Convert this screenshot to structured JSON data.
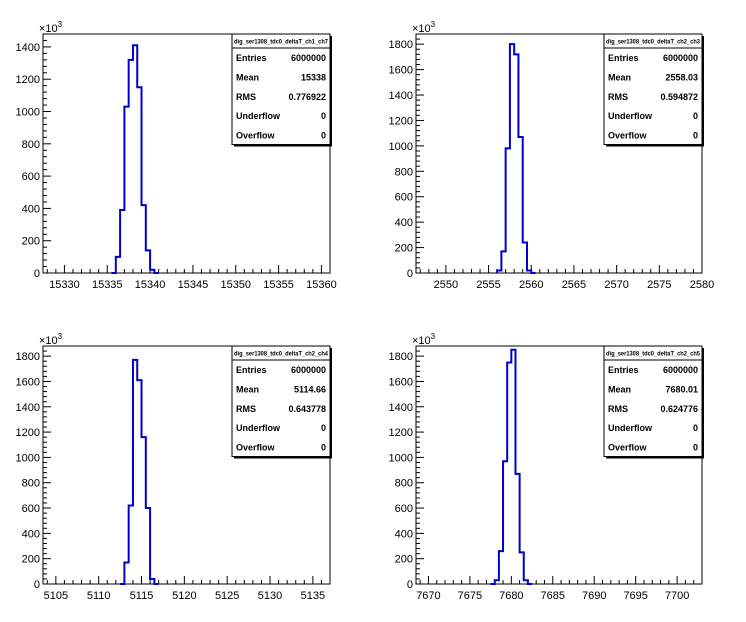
{
  "chart_data": [
    {
      "type": "histogram",
      "title": "",
      "xlabel": "",
      "ylabel": "",
      "xlim": [
        15327.5,
        15361
      ],
      "ylim": [
        0,
        1480
      ],
      "xticks": [
        15330,
        15335,
        15340,
        15345,
        15350,
        15355,
        15360
      ],
      "yticks": [
        0,
        200,
        400,
        600,
        800,
        1000,
        1200,
        1400
      ],
      "ytick_labels": [
        "0",
        "200",
        "400",
        "600",
        "800",
        "1000",
        "1200",
        "1400"
      ],
      "yexponent": "×10",
      "yexponent_power": "3",
      "bin_edges": [
        15335.5,
        15336,
        15336.5,
        15337,
        15337.5,
        15338,
        15338.5,
        15339,
        15339.5,
        15340,
        15340.5,
        15341
      ],
      "values": [
        0,
        100,
        390,
        1030,
        1320,
        1410,
        1150,
        420,
        140,
        20,
        0
      ],
      "color": "#0000cc",
      "stats": {
        "name": "dig_ser1308_tdc0_deltaT_ch1_ch7",
        "rows": [
          {
            "label": "Entries",
            "value": "6000000"
          },
          {
            "label": "Mean",
            "value": "15338"
          },
          {
            "label": "RMS",
            "value": "0.776922"
          },
          {
            "label": "Underflow",
            "value": "0"
          },
          {
            "label": "Overflow",
            "value": "0"
          }
        ]
      }
    },
    {
      "type": "histogram",
      "title": "",
      "xlabel": "",
      "ylabel": "",
      "xlim": [
        2546.5,
        2580
      ],
      "ylim": [
        0,
        1880
      ],
      "xticks": [
        2550,
        2555,
        2560,
        2565,
        2570,
        2575,
        2580
      ],
      "yticks": [
        0,
        200,
        400,
        600,
        800,
        1000,
        1200,
        1400,
        1600,
        1800
      ],
      "ytick_labels": [
        "0",
        "200",
        "400",
        "600",
        "800",
        "1000",
        "1200",
        "1400",
        "1600",
        "1800"
      ],
      "yexponent": "×10",
      "yexponent_power": "3",
      "bin_edges": [
        2556,
        2556.5,
        2557,
        2557.5,
        2558,
        2558.5,
        2559,
        2559.5,
        2560,
        2560.5
      ],
      "values": [
        20,
        170,
        980,
        1800,
        1720,
        1070,
        240,
        20,
        0
      ],
      "color": "#0000cc",
      "stats": {
        "name": "dig_ser1308_tdc0_deltaT_ch2_ch3",
        "rows": [
          {
            "label": "Entries",
            "value": "6000000"
          },
          {
            "label": "Mean",
            "value": "2558.03"
          },
          {
            "label": "RMS",
            "value": "0.594872"
          },
          {
            "label": "Underflow",
            "value": "0"
          },
          {
            "label": "Overflow",
            "value": "0"
          }
        ]
      }
    },
    {
      "type": "histogram",
      "title": "",
      "xlabel": "",
      "ylabel": "",
      "xlim": [
        5103.5,
        5137
      ],
      "ylim": [
        0,
        1880
      ],
      "xticks": [
        5105,
        5110,
        5115,
        5120,
        5125,
        5130,
        5135
      ],
      "yticks": [
        0,
        200,
        400,
        600,
        800,
        1000,
        1200,
        1400,
        1600,
        1800
      ],
      "ytick_labels": [
        "0",
        "200",
        "400",
        "600",
        "800",
        "1000",
        "1200",
        "1400",
        "1600",
        "1800"
      ],
      "yexponent": "×10",
      "yexponent_power": "3",
      "bin_edges": [
        5112.5,
        5113,
        5113.5,
        5114,
        5114.5,
        5115,
        5115.5,
        5116,
        5116.5,
        5117
      ],
      "values": [
        0,
        170,
        620,
        1770,
        1610,
        1160,
        600,
        40,
        0
      ],
      "color": "#0000cc",
      "stats": {
        "name": "dig_ser1308_tdc0_deltaT_ch2_ch4",
        "rows": [
          {
            "label": "Entries",
            "value": "6000000"
          },
          {
            "label": "Mean",
            "value": "5114.66"
          },
          {
            "label": "RMS",
            "value": "0.643778"
          },
          {
            "label": "Underflow",
            "value": "0"
          },
          {
            "label": "Overflow",
            "value": "0"
          }
        ]
      }
    },
    {
      "type": "histogram",
      "title": "",
      "xlabel": "",
      "ylabel": "",
      "xlim": [
        7668.5,
        7703
      ],
      "ylim": [
        0,
        1880
      ],
      "xticks": [
        7670,
        7675,
        7680,
        7685,
        7690,
        7695,
        7700
      ],
      "yticks": [
        0,
        200,
        400,
        600,
        800,
        1000,
        1200,
        1400,
        1600,
        1800
      ],
      "ytick_labels": [
        "0",
        "200",
        "400",
        "600",
        "800",
        "1000",
        "1200",
        "1400",
        "1600",
        "1800"
      ],
      "yexponent": "×10",
      "yexponent_power": "3",
      "bin_edges": [
        7677.5,
        7678,
        7678.5,
        7679,
        7679.5,
        7680,
        7680.5,
        7681,
        7681.5,
        7682,
        7682.5
      ],
      "values": [
        0,
        30,
        260,
        970,
        1750,
        1850,
        870,
        250,
        30,
        0
      ],
      "color": "#0000cc",
      "stats": {
        "name": "dig_ser1308_tdc0_deltaT_ch2_ch5",
        "rows": [
          {
            "label": "Entries",
            "value": "6000000"
          },
          {
            "label": "Mean",
            "value": "7680.01"
          },
          {
            "label": "RMS",
            "value": "0.624776"
          },
          {
            "label": "Underflow",
            "value": "0"
          },
          {
            "label": "Overflow",
            "value": "0"
          }
        ]
      }
    }
  ]
}
